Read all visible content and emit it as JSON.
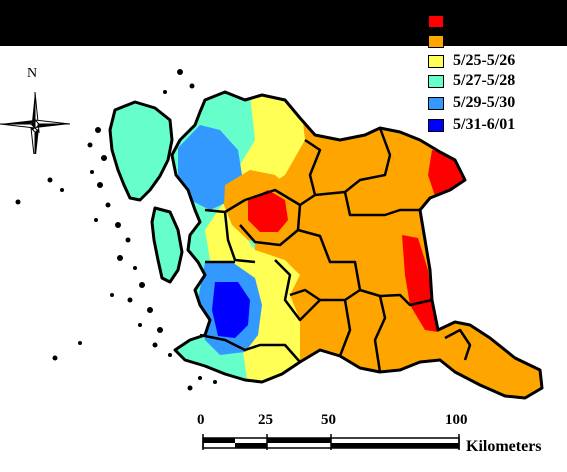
{
  "legend": {
    "items": [
      {
        "label": "",
        "color": "#ff0000"
      },
      {
        "label": "",
        "color": "#ffa500"
      },
      {
        "label": "5/25-5/26",
        "color": "#ffff55"
      },
      {
        "label": "5/27-5/28",
        "color": "#66ffcc"
      },
      {
        "label": "5/29-5/30",
        "color": "#3399ff"
      },
      {
        "label": "5/31-6/01",
        "color": "#0000ff"
      }
    ]
  },
  "north_arrow": {
    "label": "N",
    "icon": "north-arrow-compass-icon"
  },
  "scale_bar": {
    "ticks": [
      "0",
      "25",
      "50",
      "100"
    ],
    "unit": "Kilometers"
  },
  "colors": {
    "red": "#ff0000",
    "orange": "#ffa500",
    "yellow": "#ffff55",
    "aqua": "#66ffcc",
    "lightblue": "#3399ff",
    "blue": "#0000ff"
  }
}
